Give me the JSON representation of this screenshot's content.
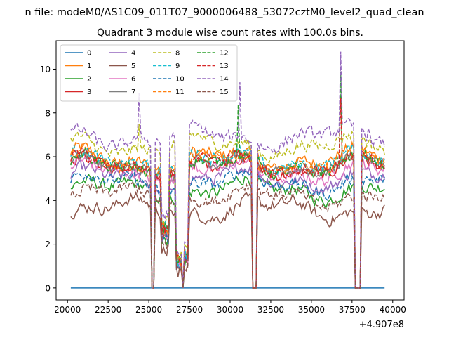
{
  "chart_data": {
    "type": "line",
    "suptitle": "n file: modeM0/AS1C09_011T07_9000006488_53072cztM0_level2_quad_clean",
    "title": "Quadrant 3 module wise count rates with 100.0s bins.",
    "xlabel": "",
    "ylabel": "",
    "x_offset_label": "+4.907e8",
    "xlim": [
      19300,
      40700
    ],
    "ylim": [
      -0.55,
      11.3
    ],
    "xticks": [
      20000,
      22500,
      25000,
      27500,
      30000,
      32500,
      35000,
      37500,
      40000
    ],
    "xtick_labels": [
      "20000",
      "22500",
      "25000",
      "27500",
      "30000",
      "32500",
      "35000",
      "37500",
      "40000"
    ],
    "yticks": [
      0,
      2,
      4,
      6,
      8,
      10
    ],
    "ytick_labels": [
      "0",
      "2",
      "4",
      "6",
      "8",
      "10"
    ],
    "x_start": 20200,
    "x_step": 100,
    "n_bins": 194,
    "legend_position": "upper-left",
    "legend_columns": 4,
    "gaps": [
      {
        "from": 25150,
        "to": 25350
      },
      {
        "from": 27050,
        "to": 27150
      },
      {
        "from": 31350,
        "to": 31650
      },
      {
        "from": 37650,
        "to": 38050
      }
    ],
    "dips": [
      {
        "center": 26000,
        "halfwidth": 250,
        "value": 2.6
      },
      {
        "center": 26900,
        "halfwidth": 250,
        "value": 1.2
      },
      {
        "center": 27250,
        "halfwidth": 150,
        "value": 1.5
      }
    ],
    "series": [
      {
        "name": "0",
        "color": "#1f77b4",
        "style": "solid",
        "level": 0.0,
        "zero": true
      },
      {
        "name": "1",
        "color": "#ff7f0e",
        "style": "solid",
        "level": 5.9
      },
      {
        "name": "2",
        "color": "#2ca02c",
        "style": "solid",
        "level": 4.5
      },
      {
        "name": "3",
        "color": "#d62728",
        "style": "solid",
        "level": 5.5
      },
      {
        "name": "4",
        "color": "#9467bd",
        "style": "solid",
        "level": 5.0
      },
      {
        "name": "5",
        "color": "#8c564b",
        "style": "solid",
        "level": 3.6
      },
      {
        "name": "6",
        "color": "#e377c2",
        "style": "solid",
        "level": 5.3
      },
      {
        "name": "7",
        "color": "#7f7f7f",
        "style": "solid",
        "level": 5.6
      },
      {
        "name": "8",
        "color": "#bcbd22",
        "style": "dashed",
        "level": 6.5
      },
      {
        "name": "9",
        "color": "#17becf",
        "style": "dashed",
        "level": 5.8
      },
      {
        "name": "10",
        "color": "#1f77b4",
        "style": "dashed",
        "level": 4.8
      },
      {
        "name": "11",
        "color": "#ff7f0e",
        "style": "dashed",
        "level": 5.7
      },
      {
        "name": "12",
        "color": "#2ca02c",
        "style": "dashed",
        "level": 5.6
      },
      {
        "name": "13",
        "color": "#d62728",
        "style": "dashed",
        "level": 5.6
      },
      {
        "name": "14",
        "color": "#9467bd",
        "style": "dashed",
        "level": 6.9
      },
      {
        "name": "15",
        "color": "#8c564b",
        "style": "dashed",
        "level": 4.2
      }
    ],
    "spikes": [
      {
        "x": 24400,
        "series": "14",
        "value": 8.9
      },
      {
        "x": 24400,
        "series": "8",
        "value": 7.5
      },
      {
        "x": 30600,
        "series": "14",
        "value": 9.4
      },
      {
        "x": 30500,
        "series": "12",
        "value": 8.4
      },
      {
        "x": 36800,
        "series": "14",
        "value": 10.8
      },
      {
        "x": 36800,
        "series": "12",
        "value": 9.9
      },
      {
        "x": 36800,
        "series": "13",
        "value": 8.7
      },
      {
        "x": 38500,
        "series": "14",
        "value": 7.3
      }
    ]
  }
}
